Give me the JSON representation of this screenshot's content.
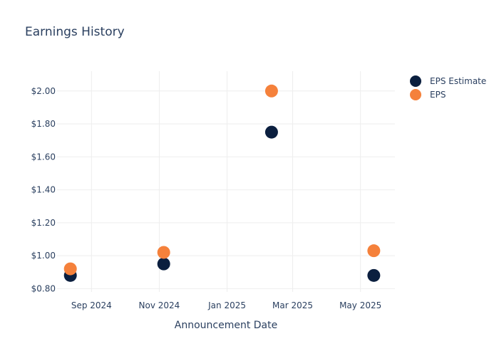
{
  "chart_data": {
    "type": "scatter",
    "title": "Earnings History",
    "xlabel": "Announcement Date",
    "ylabel": "",
    "x_ticks": [
      {
        "date": "2024-09-01",
        "label": "Sep 2024"
      },
      {
        "date": "2024-11-01",
        "label": "Nov 2024"
      },
      {
        "date": "2025-01-01",
        "label": "Jan 2025"
      },
      {
        "date": "2025-03-01",
        "label": "Mar 2025"
      },
      {
        "date": "2025-05-01",
        "label": "May 2025"
      }
    ],
    "y_ticks": [
      {
        "value": 0.8,
        "label": "$0.80"
      },
      {
        "value": 1.0,
        "label": "$1.00"
      },
      {
        "value": 1.2,
        "label": "$1.20"
      },
      {
        "value": 1.4,
        "label": "$1.40"
      },
      {
        "value": 1.6,
        "label": "$1.60"
      },
      {
        "value": 1.8,
        "label": "$1.80"
      },
      {
        "value": 2.0,
        "label": "$2.00"
      }
    ],
    "xlim": [
      "2024-08-01",
      "2025-06-01"
    ],
    "ylim": [
      0.78,
      2.12
    ],
    "grid": true,
    "legend_position": "top-right",
    "series": [
      {
        "name": "EPS Estimate",
        "color": "#0b1f3f",
        "points": [
          {
            "x": "2024-08-13",
            "y": 0.88
          },
          {
            "x": "2024-11-05",
            "y": 0.95
          },
          {
            "x": "2025-02-10",
            "y": 1.75
          },
          {
            "x": "2025-05-13",
            "y": 0.88
          }
        ]
      },
      {
        "name": "EPS",
        "color": "#f5813b",
        "points": [
          {
            "x": "2024-08-13",
            "y": 0.92
          },
          {
            "x": "2024-11-05",
            "y": 1.02
          },
          {
            "x": "2025-02-10",
            "y": 2.0
          },
          {
            "x": "2025-05-13",
            "y": 1.03
          }
        ]
      }
    ]
  }
}
